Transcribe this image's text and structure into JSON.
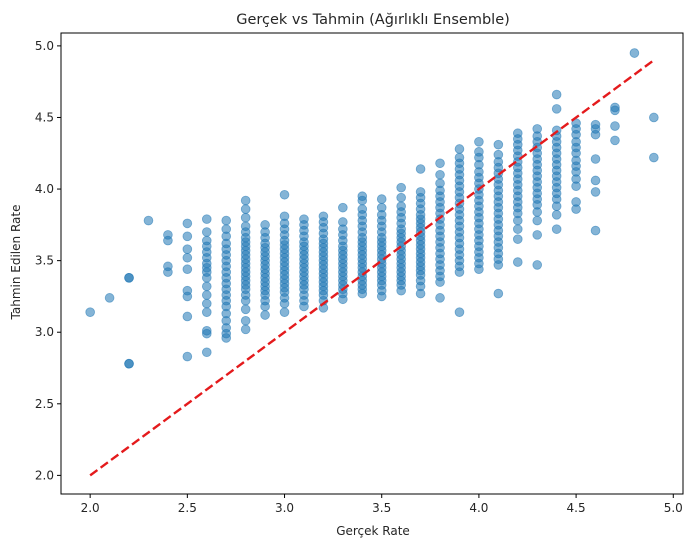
{
  "chart_data": {
    "type": "scatter",
    "title": "Gerçek vs Tahmin (Ağırlıklı Ensemble)",
    "xlabel": "Gerçek Rate",
    "ylabel": "Tahmin Edilen Rate",
    "xlim": [
      1.85,
      5.05
    ],
    "ylim": [
      1.87,
      5.09
    ],
    "xticks": [
      2.0,
      2.5,
      3.0,
      3.5,
      4.0,
      4.5,
      5.0
    ],
    "xtick_labels": [
      "2.0",
      "2.5",
      "3.0",
      "3.5",
      "4.0",
      "4.5",
      "5.0"
    ],
    "yticks": [
      2.0,
      2.5,
      3.0,
      3.5,
      4.0,
      4.5,
      5.0
    ],
    "ytick_labels": [
      "2.0",
      "2.5",
      "3.0",
      "3.5",
      "4.0",
      "4.5",
      "5.0"
    ],
    "grid": false,
    "reference_line": {
      "x": [
        2.0,
        4.9
      ],
      "y": [
        2.0,
        4.9
      ],
      "style": "dashed",
      "color": "#e41a1c"
    },
    "point_color": "#1f77b4",
    "point_alpha": 0.55,
    "columns": [
      {
        "x": 2.0,
        "y": [
          3.14
        ]
      },
      {
        "x": 2.1,
        "y": [
          3.24
        ]
      },
      {
        "x": 2.2,
        "y": [
          2.78,
          2.78,
          3.38,
          3.38
        ]
      },
      {
        "x": 2.3,
        "y": [
          3.78
        ]
      },
      {
        "x": 2.4,
        "y": [
          3.42,
          3.46,
          3.64,
          3.68
        ]
      },
      {
        "x": 2.5,
        "y": [
          2.83,
          3.11,
          3.25,
          3.29,
          3.44,
          3.52,
          3.58,
          3.67,
          3.76
        ]
      },
      {
        "x": 2.6,
        "y": [
          2.86,
          2.99,
          3.01,
          3.14,
          3.2,
          3.26,
          3.32,
          3.38,
          3.42,
          3.45,
          3.48,
          3.52,
          3.56,
          3.6,
          3.64,
          3.7,
          3.79
        ]
      },
      {
        "x": 2.7,
        "y": [
          2.96,
          2.99,
          3.03,
          3.08,
          3.13,
          3.18,
          3.22,
          3.26,
          3.3,
          3.34,
          3.38,
          3.42,
          3.46,
          3.5,
          3.54,
          3.58,
          3.62,
          3.67,
          3.72,
          3.78
        ]
      },
      {
        "x": 2.8,
        "y": [
          3.02,
          3.08,
          3.16,
          3.22,
          3.26,
          3.3,
          3.33,
          3.36,
          3.39,
          3.42,
          3.45,
          3.48,
          3.51,
          3.54,
          3.57,
          3.6,
          3.63,
          3.66,
          3.7,
          3.74,
          3.8,
          3.86,
          3.92
        ]
      },
      {
        "x": 2.9,
        "y": [
          3.12,
          3.18,
          3.22,
          3.26,
          3.29,
          3.32,
          3.35,
          3.38,
          3.41,
          3.44,
          3.47,
          3.5,
          3.53,
          3.56,
          3.59,
          3.62,
          3.66,
          3.7,
          3.75
        ]
      },
      {
        "x": 3.0,
        "y": [
          3.14,
          3.2,
          3.24,
          3.28,
          3.31,
          3.34,
          3.37,
          3.4,
          3.43,
          3.46,
          3.49,
          3.52,
          3.55,
          3.58,
          3.61,
          3.64,
          3.68,
          3.72,
          3.76,
          3.81,
          3.96
        ]
      },
      {
        "x": 3.1,
        "y": [
          3.18,
          3.22,
          3.26,
          3.3,
          3.33,
          3.36,
          3.39,
          3.42,
          3.45,
          3.48,
          3.51,
          3.54,
          3.57,
          3.6,
          3.63,
          3.67,
          3.71,
          3.75,
          3.79
        ]
      },
      {
        "x": 3.2,
        "y": [
          3.17,
          3.22,
          3.26,
          3.29,
          3.32,
          3.35,
          3.38,
          3.41,
          3.44,
          3.47,
          3.5,
          3.53,
          3.56,
          3.59,
          3.62,
          3.65,
          3.69,
          3.73,
          3.77,
          3.81
        ]
      },
      {
        "x": 3.3,
        "y": [
          3.23,
          3.27,
          3.3,
          3.33,
          3.36,
          3.39,
          3.42,
          3.45,
          3.48,
          3.51,
          3.54,
          3.57,
          3.6,
          3.64,
          3.68,
          3.72,
          3.77,
          3.87
        ]
      },
      {
        "x": 3.4,
        "y": [
          3.27,
          3.3,
          3.33,
          3.36,
          3.39,
          3.42,
          3.45,
          3.48,
          3.51,
          3.54,
          3.57,
          3.6,
          3.63,
          3.66,
          3.7,
          3.74,
          3.78,
          3.82,
          3.86,
          3.92,
          3.95
        ]
      },
      {
        "x": 3.5,
        "y": [
          3.25,
          3.29,
          3.33,
          3.36,
          3.39,
          3.42,
          3.45,
          3.48,
          3.51,
          3.54,
          3.57,
          3.6,
          3.63,
          3.66,
          3.7,
          3.74,
          3.78,
          3.82,
          3.87,
          3.93
        ]
      },
      {
        "x": 3.6,
        "y": [
          3.29,
          3.33,
          3.36,
          3.39,
          3.42,
          3.45,
          3.48,
          3.51,
          3.54,
          3.57,
          3.6,
          3.63,
          3.66,
          3.69,
          3.72,
          3.76,
          3.8,
          3.84,
          3.88,
          3.94,
          4.01
        ]
      },
      {
        "x": 3.7,
        "y": [
          3.27,
          3.32,
          3.36,
          3.4,
          3.43,
          3.46,
          3.49,
          3.52,
          3.55,
          3.58,
          3.61,
          3.64,
          3.67,
          3.7,
          3.73,
          3.76,
          3.79,
          3.82,
          3.86,
          3.9,
          3.94,
          3.98,
          4.14
        ]
      },
      {
        "x": 3.8,
        "y": [
          3.24,
          3.35,
          3.39,
          3.43,
          3.47,
          3.51,
          3.55,
          3.59,
          3.63,
          3.67,
          3.71,
          3.75,
          3.79,
          3.83,
          3.87,
          3.91,
          3.95,
          3.99,
          4.04,
          4.1,
          4.18
        ]
      },
      {
        "x": 3.9,
        "y": [
          3.14,
          3.42,
          3.46,
          3.5,
          3.54,
          3.58,
          3.62,
          3.66,
          3.7,
          3.74,
          3.78,
          3.82,
          3.86,
          3.9,
          3.94,
          3.98,
          4.02,
          4.06,
          4.1,
          4.14,
          4.18,
          4.22,
          4.28
        ]
      },
      {
        "x": 4.0,
        "y": [
          3.44,
          3.48,
          3.52,
          3.56,
          3.6,
          3.64,
          3.68,
          3.72,
          3.76,
          3.8,
          3.84,
          3.88,
          3.92,
          3.96,
          4.0,
          4.04,
          4.08,
          4.12,
          4.17,
          4.22,
          4.26,
          4.33
        ]
      },
      {
        "x": 4.1,
        "y": [
          3.27,
          3.47,
          3.51,
          3.55,
          3.59,
          3.63,
          3.67,
          3.71,
          3.75,
          3.79,
          3.83,
          3.87,
          3.91,
          3.95,
          3.99,
          4.03,
          4.07,
          4.11,
          4.15,
          4.19,
          4.24,
          4.31
        ]
      },
      {
        "x": 4.2,
        "y": [
          3.49,
          3.65,
          3.72,
          3.78,
          3.83,
          3.87,
          3.91,
          3.95,
          3.99,
          4.03,
          4.07,
          4.11,
          4.15,
          4.19,
          4.23,
          4.27,
          4.31,
          4.35,
          4.39
        ]
      },
      {
        "x": 4.3,
        "y": [
          3.47,
          3.68,
          3.78,
          3.84,
          3.89,
          3.93,
          3.97,
          4.01,
          4.05,
          4.09,
          4.13,
          4.17,
          4.21,
          4.25,
          4.29,
          4.33,
          4.37,
          4.42
        ]
      },
      {
        "x": 4.4,
        "y": [
          3.72,
          3.82,
          3.88,
          3.93,
          3.97,
          4.01,
          4.05,
          4.09,
          4.13,
          4.17,
          4.21,
          4.25,
          4.29,
          4.33,
          4.37,
          4.41,
          4.56,
          4.66
        ]
      },
      {
        "x": 4.5,
        "y": [
          3.86,
          3.91,
          4.02,
          4.07,
          4.12,
          4.16,
          4.2,
          4.25,
          4.29,
          4.33,
          4.38,
          4.42,
          4.46
        ]
      },
      {
        "x": 4.6,
        "y": [
          3.71,
          3.98,
          4.06,
          4.21,
          4.38,
          4.42,
          4.45
        ]
      },
      {
        "x": 4.7,
        "y": [
          4.34,
          4.44,
          4.55,
          4.57
        ]
      },
      {
        "x": 4.8,
        "y": [
          4.95
        ]
      },
      {
        "x": 4.9,
        "y": [
          4.22,
          4.5
        ]
      }
    ]
  }
}
